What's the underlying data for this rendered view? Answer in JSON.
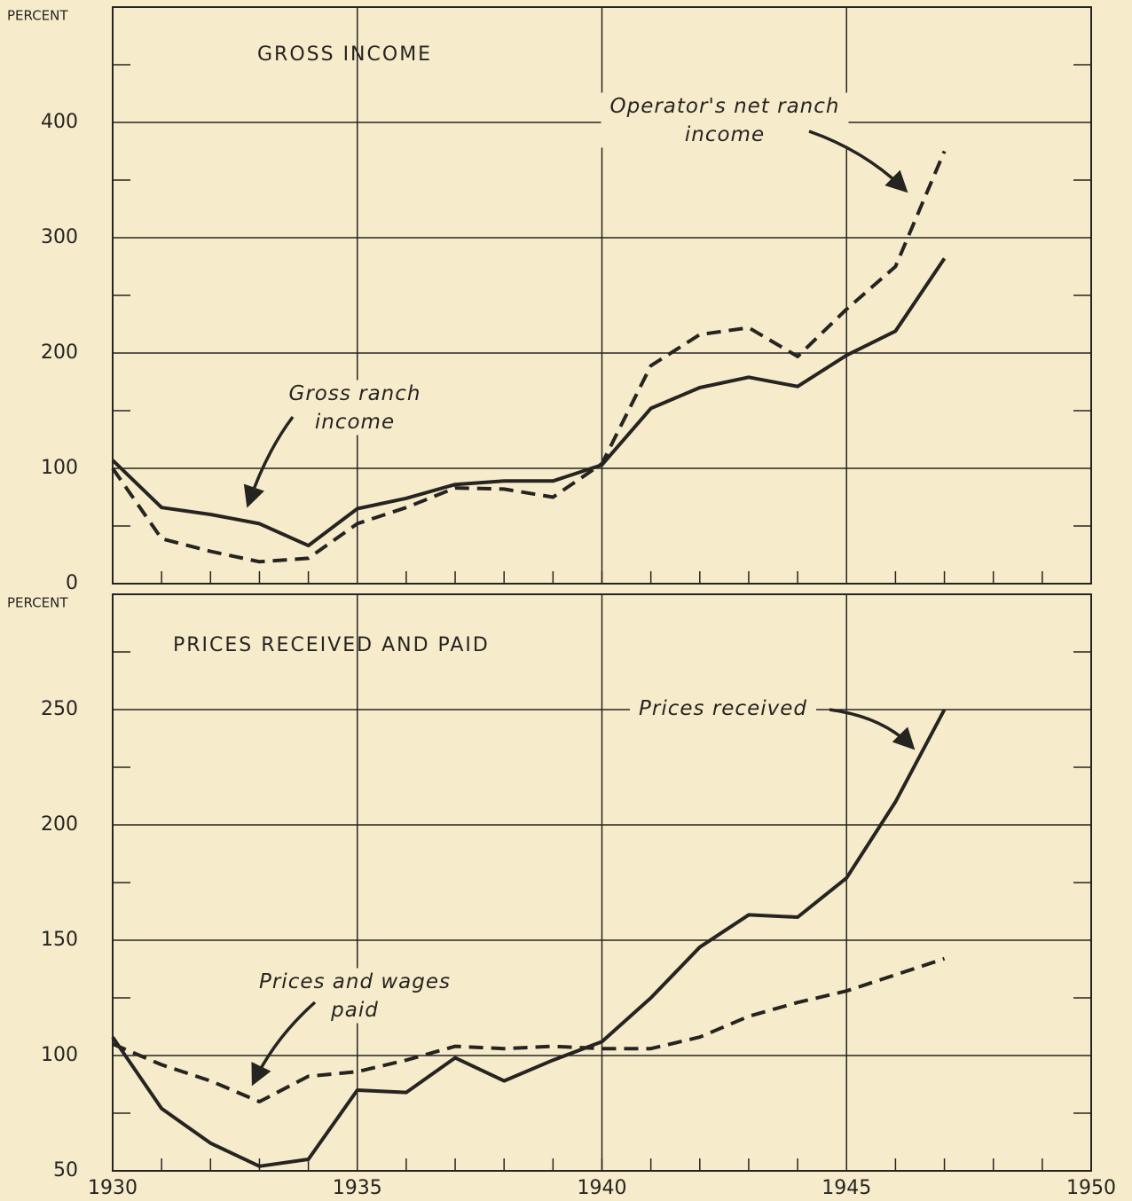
{
  "chart_data": [
    {
      "type": "line",
      "title": "GROSS INCOME",
      "y_label": "PERCENT",
      "x": [
        1930,
        1931,
        1932,
        1933,
        1934,
        1935,
        1936,
        1937,
        1938,
        1939,
        1940,
        1941,
        1942,
        1943,
        1944,
        1945,
        1946,
        1947
      ],
      "series": [
        {
          "name": "Gross ranch income",
          "color": "#262421",
          "style": "solid",
          "values": [
            107,
            66,
            60,
            52,
            33,
            65,
            74,
            86,
            89,
            89,
            103,
            152,
            170,
            179,
            171,
            198,
            219,
            282
          ]
        },
        {
          "name": "Operator's net ranch income",
          "color": "#262421",
          "style": "dashed",
          "values": [
            100,
            39,
            28,
            19,
            22,
            52,
            66,
            83,
            82,
            75,
            104,
            189,
            216,
            222,
            197,
            238,
            275,
            375
          ]
        }
      ],
      "xlim": [
        1930,
        1950
      ],
      "xticks": [
        1930,
        1935,
        1940,
        1945,
        1950
      ],
      "ylim": [
        0,
        500
      ],
      "yticks": [
        0,
        100,
        200,
        300,
        400
      ],
      "grid": true
    },
    {
      "type": "line",
      "title": "PRICES RECEIVED AND PAID",
      "y_label": "PERCENT",
      "x": [
        1930,
        1931,
        1932,
        1933,
        1934,
        1935,
        1936,
        1937,
        1938,
        1939,
        1940,
        1941,
        1942,
        1943,
        1944,
        1945,
        1946,
        1947
      ],
      "series": [
        {
          "name": "Prices received",
          "color": "#262421",
          "style": "solid",
          "values": [
            108,
            77,
            62,
            52,
            55,
            85,
            84,
            99,
            89,
            98,
            106,
            125,
            147,
            161,
            160,
            177,
            210,
            250
          ]
        },
        {
          "name": "Prices and wages paid",
          "color": "#262421",
          "style": "dashed",
          "values": [
            105,
            96,
            89,
            80,
            91,
            93,
            98,
            104,
            103,
            104,
            103,
            103,
            108,
            117,
            123,
            128,
            135,
            142
          ]
        }
      ],
      "xlim": [
        1930,
        1950
      ],
      "xticks": [
        1930,
        1935,
        1940,
        1945,
        1950
      ],
      "ylim": [
        50,
        300
      ],
      "yticks": [
        50,
        100,
        150,
        200,
        250
      ],
      "grid": true
    }
  ]
}
